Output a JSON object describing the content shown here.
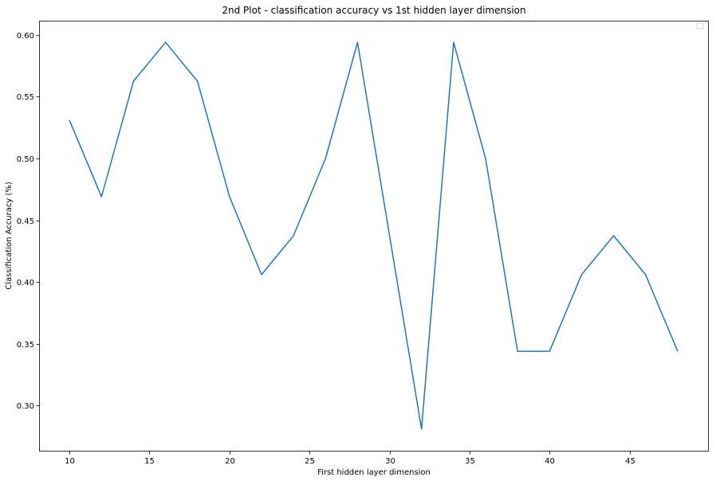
{
  "chart_data": {
    "type": "line",
    "title": "2nd Plot - classification accuracy vs 1st hidden layer dimension",
    "xlabel": "First hidden layer dimension",
    "ylabel": "Classification Accuracy (%)",
    "xlim": [
      8.1,
      49.9
    ],
    "ylim": [
      0.2635,
      0.6115
    ],
    "xticks": [
      10,
      15,
      20,
      25,
      30,
      35,
      40,
      45
    ],
    "xtick_labels": [
      "10",
      "15",
      "20",
      "25",
      "30",
      "35",
      "40",
      "45"
    ],
    "yticks": [
      0.3,
      0.35,
      0.4,
      0.45,
      0.5,
      0.55,
      0.6
    ],
    "ytick_labels": [
      "0.30",
      "0.35",
      "0.40",
      "0.45",
      "0.50",
      "0.55",
      "0.60"
    ],
    "grid": false,
    "legend_position": "top-right",
    "series": [
      {
        "color": "#1f77b4",
        "x": [
          10,
          12,
          14,
          16,
          18,
          20,
          22,
          24,
          26,
          28,
          30,
          32,
          34,
          36,
          38,
          40,
          42,
          44,
          46,
          48
        ],
        "y": [
          0.531,
          0.469,
          0.5625,
          0.594,
          0.5625,
          0.469,
          0.406,
          0.4375,
          0.5,
          0.594,
          0.4375,
          0.281,
          0.594,
          0.5,
          0.344,
          0.344,
          0.406,
          0.4375,
          0.406,
          0.344
        ]
      }
    ]
  }
}
